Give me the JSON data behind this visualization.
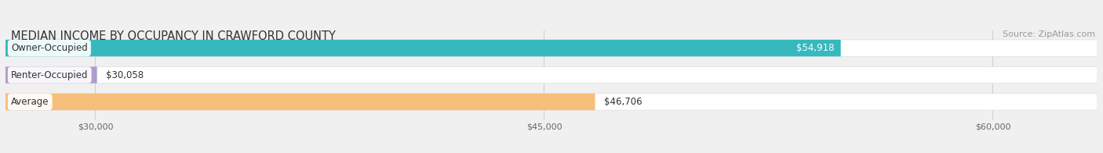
{
  "title": "MEDIAN INCOME BY OCCUPANCY IN CRAWFORD COUNTY",
  "source": "Source: ZipAtlas.com",
  "categories": [
    "Owner-Occupied",
    "Renter-Occupied",
    "Average"
  ],
  "values": [
    54918,
    30058,
    46706
  ],
  "bar_colors": [
    "#36b8bf",
    "#b09ccc",
    "#f5bf7a"
  ],
  "value_labels": [
    "$54,918",
    "$30,058",
    "$46,706"
  ],
  "value_label_inside": [
    true,
    false,
    false
  ],
  "x_ticks": [
    30000,
    45000,
    60000
  ],
  "x_tick_labels": [
    "$30,000",
    "$45,000",
    "$60,000"
  ],
  "xmin": 27000,
  "xmax": 63500,
  "bar_height": 0.62,
  "background_color": "#f0f0f0",
  "bar_bg_color": "#ffffff",
  "bar_bg_alpha": 0.9,
  "title_fontsize": 10.5,
  "source_fontsize": 8,
  "label_fontsize": 8.5,
  "value_fontsize": 8.5,
  "tick_fontsize": 8
}
